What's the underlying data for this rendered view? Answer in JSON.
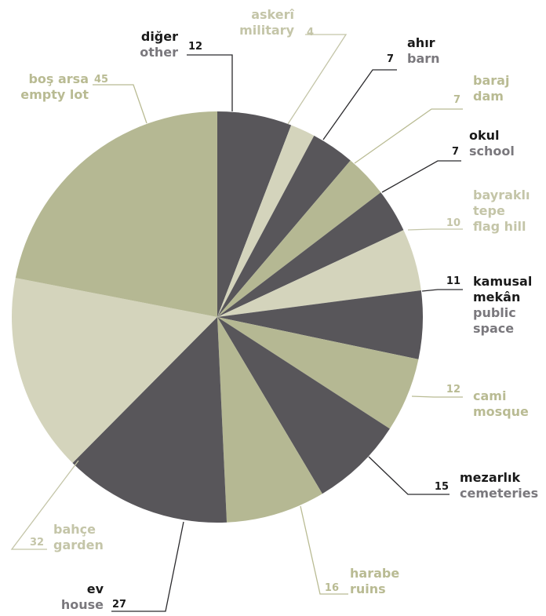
{
  "colors": {
    "dark": "#58565a",
    "olive": "#b5b893",
    "light": "#d4d4bc",
    "dark_label_primary": "#1a1a1a",
    "dark_label_secondary": "#7a787d",
    "light_label": "#c4c5a8",
    "olive_label": "#b9bb93"
  },
  "chart_data": {
    "type": "pie",
    "start": "12 o'clock, clockwise",
    "slices": [
      {
        "label_tr": "diğer",
        "label_en": "other",
        "value": 12,
        "tone": "dark"
      },
      {
        "label_tr": "askerî",
        "label_en": "military",
        "value": 4,
        "tone": "light"
      },
      {
        "label_tr": "ahır",
        "label_en": "barn",
        "value": 7,
        "tone": "dark"
      },
      {
        "label_tr": "baraj",
        "label_en": "dam",
        "value": 7,
        "tone": "olive"
      },
      {
        "label_tr": "okul",
        "label_en": "school",
        "value": 7,
        "tone": "dark"
      },
      {
        "label_tr": "bayraklı tepe",
        "label_en": "flag hill",
        "value": 10,
        "tone": "light"
      },
      {
        "label_tr": "kamusal mekân",
        "label_en": "public space",
        "value": 11,
        "tone": "dark"
      },
      {
        "label_tr": "cami",
        "label_en": "mosque",
        "value": 12,
        "tone": "olive"
      },
      {
        "label_tr": "mezarlık",
        "label_en": "cemeteries",
        "value": 15,
        "tone": "dark"
      },
      {
        "label_tr": "harabe",
        "label_en": "ruins",
        "value": 16,
        "tone": "olive"
      },
      {
        "label_tr": "ev",
        "label_en": "house",
        "value": 27,
        "tone": "dark"
      },
      {
        "label_tr": "bahçe",
        "label_en": "garden",
        "value": 32,
        "tone": "light"
      },
      {
        "label_tr": "boş arsa",
        "label_en": "empty lot",
        "value": 45,
        "tone": "olive"
      }
    ]
  }
}
